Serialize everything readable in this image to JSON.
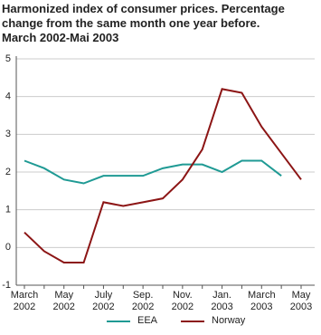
{
  "chart_data": {
    "type": "line",
    "title": "Harmonized index of consumer prices. Percentage change from the same month one year before.",
    "subtitle": "March 2002-Mai 2003",
    "categories": [
      "March 2002",
      null,
      "May 2002",
      null,
      "July 2002",
      null,
      "Sep. 2002",
      null,
      "Nov. 2002",
      null,
      "Jan. 2003",
      null,
      "March 2003",
      null,
      "May 2003"
    ],
    "series": [
      {
        "name": "EEA",
        "color": "#1f9a94",
        "values": [
          2.3,
          2.1,
          1.8,
          1.7,
          1.9,
          1.9,
          1.9,
          2.1,
          2.2,
          2.2,
          2.0,
          2.3,
          2.3,
          1.9,
          null
        ]
      },
      {
        "name": "Norway",
        "color": "#8c1515",
        "values": [
          0.4,
          -0.1,
          -0.4,
          -0.4,
          1.2,
          1.1,
          1.2,
          1.3,
          1.8,
          2.6,
          4.2,
          4.1,
          3.2,
          2.5,
          1.8
        ]
      }
    ],
    "ylim": [
      -1,
      5
    ],
    "yticks": [
      -1,
      0,
      1,
      2,
      3,
      4,
      5
    ],
    "grid": true,
    "legend": "bottom"
  }
}
